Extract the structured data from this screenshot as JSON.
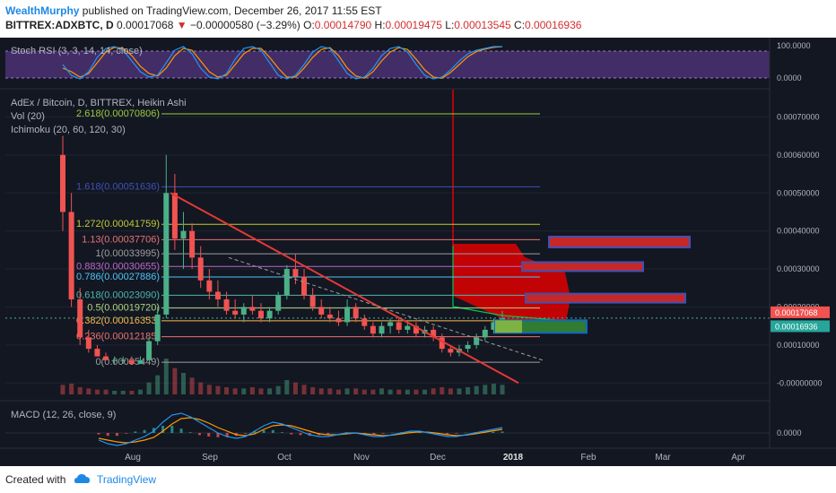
{
  "header": {
    "author": "WealthMurphy",
    "published_text": "published on TradingView.com, December 26, 2017 11:55 EST",
    "symbol": "BITTREX:ADXBTC, D",
    "last": "0.00017068",
    "down_arrow": "▼",
    "change": "−0.00000580 (−3.29%)",
    "o_label": "O:",
    "o_value": "0.00014790",
    "h_label": "H:",
    "h_value": "0.00019475",
    "l_label": "L:",
    "l_value": "0.00013545",
    "c_label": "C:",
    "c_value": "0.00016936"
  },
  "footer": {
    "created_with": "Created with",
    "brand": "TradingView"
  },
  "colors": {
    "bg": "#131722",
    "up": "#4caf87",
    "down": "#f05350",
    "trendline": "#e53935",
    "text": "#b2b5be",
    "stoch_band": "#6a3fa0"
  },
  "chart_data": {
    "type": "candlestick",
    "panes": {
      "stoch": {
        "title": "Stoch RSI (3, 3, 14, 14, close)",
        "levels": [
          "100.0000",
          "0.0000"
        ],
        "k": [
          50,
          20,
          10,
          30,
          70,
          95,
          100,
          90,
          60,
          30,
          15,
          20,
          55,
          90,
          100,
          80,
          40,
          15,
          10,
          25,
          65,
          95,
          100,
          90,
          55,
          20,
          10,
          20,
          50,
          85,
          100,
          95,
          60,
          25,
          10,
          15,
          40,
          75,
          95,
          100,
          85,
          50,
          20,
          10,
          15,
          35,
          60,
          80,
          90,
          95,
          100,
          100
        ],
        "d": [
          40,
          30,
          15,
          25,
          55,
          85,
          98,
          95,
          75,
          45,
          25,
          18,
          40,
          75,
          95,
          90,
          60,
          30,
          15,
          20,
          50,
          80,
          95,
          95,
          70,
          40,
          15,
          15,
          40,
          70,
          92,
          97,
          75,
          40,
          18,
          12,
          30,
          60,
          85,
          97,
          92,
          65,
          35,
          15,
          12,
          28,
          50,
          72,
          86,
          93,
          98,
          100
        ]
      },
      "price": {
        "title": "AdEx / Bitcoin, D, BITTREX, Heikin Ashi",
        "vol_label": "Vol (20)",
        "ichimoku_label": "Ichimoku (20, 60, 120, 30)",
        "y_ticks": [
          "0.00070000",
          "0.00060000",
          "0.00050000",
          "0.00040000",
          "0.00030000",
          "0.00020000",
          "0.00010000",
          "-0.00000000"
        ],
        "y_tick_values": [
          0.0007,
          0.0006,
          0.0005,
          0.0004,
          0.0003,
          0.0002,
          0.0001,
          0.0
        ],
        "ylim": [
          -3e-05,
          0.00076
        ],
        "price_tags": [
          "0.00017068",
          "0.00016936"
        ],
        "price_tag_values": [
          0.00017068,
          0.00016936
        ],
        "fib_levels": [
          {
            "label": "2.618(0.00070806)",
            "value": 0.00070806,
            "color": "#9ccc3a"
          },
          {
            "label": "1.618(0.00051636)",
            "value": 0.00051636,
            "color": "#3f51b5"
          },
          {
            "label": "1.272(0.00041759)",
            "value": 0.00041759,
            "color": "#c0ca33"
          },
          {
            "label": "1.13(0.00037706)",
            "value": 0.00037706,
            "color": "#e57373"
          },
          {
            "label": "1(0.00033995)",
            "value": 0.00033995,
            "color": "#9e9e9e"
          },
          {
            "label": "0.883(0.00030655)",
            "value": 0.00030655,
            "color": "#ba68c8"
          },
          {
            "label": "0.786(0.00027886)",
            "value": 0.00027886,
            "color": "#4fc3f7"
          },
          {
            "label": "0.618(0.00023090)",
            "value": 0.0002309,
            "color": "#4db6ac"
          },
          {
            "label": "0.5(0.00019720)",
            "value": 0.0001972,
            "color": "#aed581"
          },
          {
            "label": "0.382(0.00016353)",
            "value": 0.00016353,
            "color": "#ffb74d"
          },
          {
            "label": "0.236(0.00012185)",
            "value": 0.00012185,
            "color": "#e57373"
          },
          {
            "label": "0(0.00005449)",
            "value": 5.449e-05,
            "color": "#9e9e9e"
          }
        ],
        "candles": [
          [
            0.0006,
            0.00065,
            0.0004,
            0.00045
          ],
          [
            0.00045,
            0.0005,
            0.0002,
            0.00022
          ],
          [
            0.00022,
            0.00025,
            0.0001,
            0.00012
          ],
          [
            0.00012,
            0.00014,
            8e-05,
            9e-05
          ],
          [
            9e-05,
            0.0001,
            7e-05,
            7e-05
          ],
          [
            7e-05,
            8e-05,
            6e-05,
            6e-05
          ],
          [
            6e-05,
            7e-05,
            5e-05,
            6e-05
          ],
          [
            6e-05,
            7e-05,
            5e-05,
            6e-05
          ],
          [
            6e-05,
            7e-05,
            5e-05,
            5e-05
          ],
          [
            5e-05,
            7e-05,
            5e-05,
            6e-05
          ],
          [
            6e-05,
            0.00012,
            6e-05,
            0.00011
          ],
          [
            0.00011,
            0.0002,
            0.0001,
            0.00018
          ],
          [
            0.00018,
            0.0006,
            0.00017,
            0.0005
          ],
          [
            0.0005,
            0.00055,
            0.00035,
            0.00038
          ],
          [
            0.00038,
            0.00045,
            0.0003,
            0.0004
          ],
          [
            0.0004,
            0.00042,
            0.0003,
            0.00033
          ],
          [
            0.00033,
            0.00036,
            0.00025,
            0.00027
          ],
          [
            0.00027,
            0.0003,
            0.00022,
            0.00024
          ],
          [
            0.00024,
            0.00027,
            0.0002,
            0.00022
          ],
          [
            0.00022,
            0.00024,
            0.00018,
            0.00019
          ],
          [
            0.00019,
            0.00022,
            0.00017,
            0.00018
          ],
          [
            0.00018,
            0.00021,
            0.00016,
            0.0002
          ],
          [
            0.0002,
            0.00023,
            0.00018,
            0.00019
          ],
          [
            0.00019,
            0.00021,
            0.00016,
            0.00017
          ],
          [
            0.00017,
            0.0002,
            0.00016,
            0.00019
          ],
          [
            0.00019,
            0.00024,
            0.00018,
            0.00023
          ],
          [
            0.00023,
            0.00031,
            0.00022,
            0.0003
          ],
          [
            0.0003,
            0.00034,
            0.00026,
            0.00028
          ],
          [
            0.00028,
            0.0003,
            0.00022,
            0.00023
          ],
          [
            0.00023,
            0.00025,
            0.00019,
            0.0002
          ],
          [
            0.0002,
            0.00022,
            0.00017,
            0.00018
          ],
          [
            0.00018,
            0.0002,
            0.00016,
            0.00017
          ],
          [
            0.00017,
            0.00019,
            0.00015,
            0.00016
          ],
          [
            0.00016,
            0.00022,
            0.00015,
            0.0002
          ],
          [
            0.0002,
            0.00021,
            0.00016,
            0.00017
          ],
          [
            0.00017,
            0.00018,
            0.00014,
            0.00015
          ],
          [
            0.00015,
            0.00016,
            0.00012,
            0.00013
          ],
          [
            0.00013,
            0.00016,
            0.00012,
            0.00015
          ],
          [
            0.00015,
            0.00017,
            0.00013,
            0.00016
          ],
          [
            0.00016,
            0.00017,
            0.00013,
            0.00014
          ],
          [
            0.00014,
            0.00016,
            0.00013,
            0.00015
          ],
          [
            0.00015,
            0.00016,
            0.00012,
            0.00013
          ],
          [
            0.00013,
            0.00015,
            0.00012,
            0.00014
          ],
          [
            0.00014,
            0.00015,
            0.00011,
            0.00012
          ],
          [
            0.00012,
            0.00013,
            8e-05,
            9e-05
          ],
          [
            9e-05,
            0.0001,
            7e-05,
            8e-05
          ],
          [
            8e-05,
            0.0001,
            7e-05,
            9e-05
          ],
          [
            9e-05,
            0.00011,
            8e-05,
            0.0001
          ],
          [
            0.0001,
            0.00013,
            9e-05,
            0.00012
          ],
          [
            0.00012,
            0.00015,
            0.00011,
            0.00014
          ],
          [
            0.00014,
            0.00017,
            0.00013,
            0.00016
          ],
          [
            0.00016,
            0.00019,
            0.00014,
            0.00017
          ]
        ],
        "volume": [
          8,
          9,
          6,
          5,
          4,
          4,
          3,
          3,
          3,
          4,
          10,
          16,
          30,
          22,
          18,
          14,
          10,
          8,
          7,
          6,
          5,
          5,
          6,
          5,
          5,
          7,
          12,
          10,
          8,
          6,
          5,
          5,
          4,
          5,
          5,
          4,
          4,
          5,
          4,
          4,
          4,
          4,
          4,
          5,
          6,
          5,
          5,
          6,
          7,
          8,
          9,
          8
        ]
      },
      "macd": {
        "title": "MACD (12, 26, close, 9)",
        "y_tick": "0.0000",
        "macd": [
          -0.4,
          -0.6,
          -0.7,
          -0.6,
          -0.4,
          -0.2,
          0.1,
          0.6,
          1.0,
          1.1,
          0.9,
          0.6,
          0.3,
          0.0,
          -0.2,
          -0.3,
          -0.2,
          0.1,
          0.4,
          0.6,
          0.5,
          0.3,
          0.1,
          -0.1,
          -0.2,
          -0.2,
          -0.1,
          0.0,
          0.0,
          -0.1,
          -0.2,
          -0.2,
          -0.1,
          0.0,
          0.1,
          0.1,
          0.0,
          -0.1,
          -0.2,
          -0.2,
          -0.1,
          0.0,
          0.1,
          0.2,
          0.3
        ],
        "signal": [
          -0.3,
          -0.4,
          -0.5,
          -0.55,
          -0.5,
          -0.4,
          -0.25,
          0.1,
          0.5,
          0.8,
          0.85,
          0.75,
          0.55,
          0.3,
          0.1,
          -0.1,
          -0.15,
          -0.05,
          0.2,
          0.4,
          0.45,
          0.4,
          0.25,
          0.1,
          -0.05,
          -0.1,
          -0.1,
          -0.05,
          0.0,
          -0.05,
          -0.1,
          -0.15,
          -0.12,
          -0.05,
          0.02,
          0.06,
          0.04,
          -0.02,
          -0.1,
          -0.15,
          -0.12,
          -0.05,
          0.03,
          0.12,
          0.2
        ]
      }
    },
    "x_labels": [
      "Aug",
      "Sep",
      "Oct",
      "Nov",
      "Dec",
      "2018",
      "Feb",
      "Mar",
      "Apr"
    ]
  }
}
